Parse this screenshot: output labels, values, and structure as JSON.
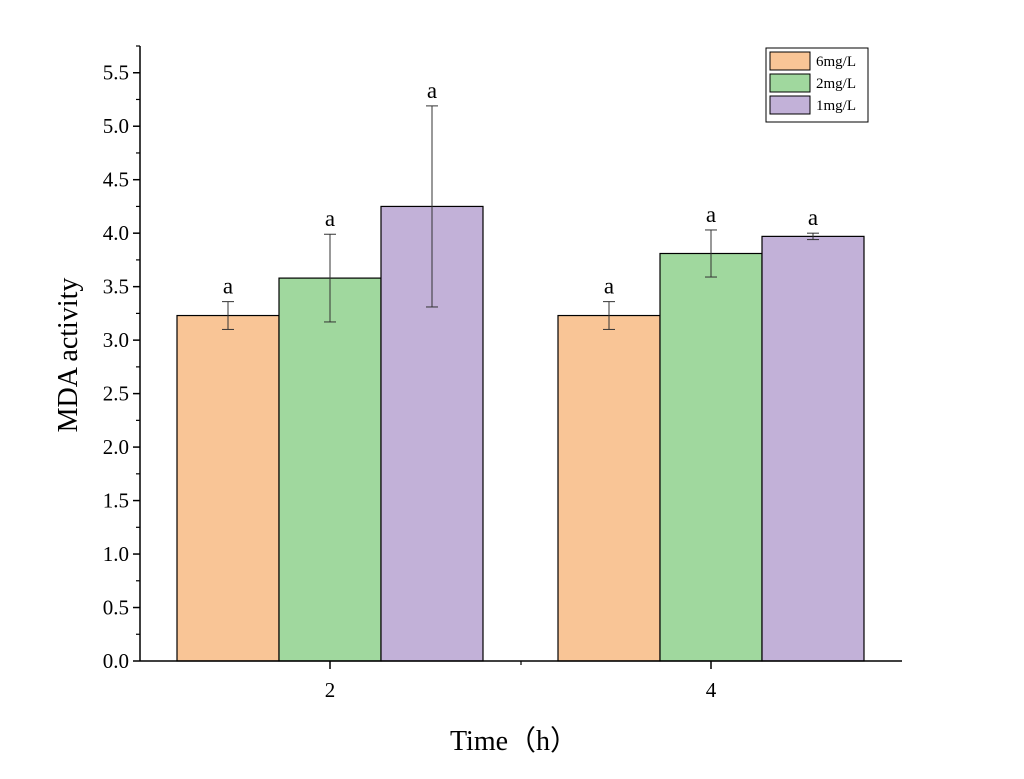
{
  "chart_data": {
    "type": "bar",
    "xlabel": "Time（h）",
    "ylabel": "MDA activity",
    "categories": [
      "2",
      "4"
    ],
    "ylim": [
      0,
      5.75
    ],
    "yticks": [
      "0.0",
      "0.5",
      "1.0",
      "1.5",
      "2.0",
      "2.5",
      "3.0",
      "3.5",
      "4.0",
      "4.5",
      "5.0",
      "5.5"
    ],
    "legend_position": "top-right",
    "grid": false,
    "series": [
      {
        "name": "6mg/L",
        "color": "#f9c596",
        "values": [
          3.23,
          3.23
        ],
        "errors": [
          0.13,
          0.13
        ],
        "labels": [
          "a",
          "a"
        ]
      },
      {
        "name": "2mg/L",
        "color": "#a0d89e",
        "values": [
          3.58,
          3.81
        ],
        "errors": [
          0.41,
          0.22
        ],
        "labels": [
          "a",
          "a"
        ]
      },
      {
        "name": "1mg/L",
        "color": "#c2b1d8",
        "values": [
          4.25,
          3.97
        ],
        "errors": [
          0.94,
          0.03
        ],
        "labels": [
          "a",
          "a"
        ]
      }
    ]
  }
}
